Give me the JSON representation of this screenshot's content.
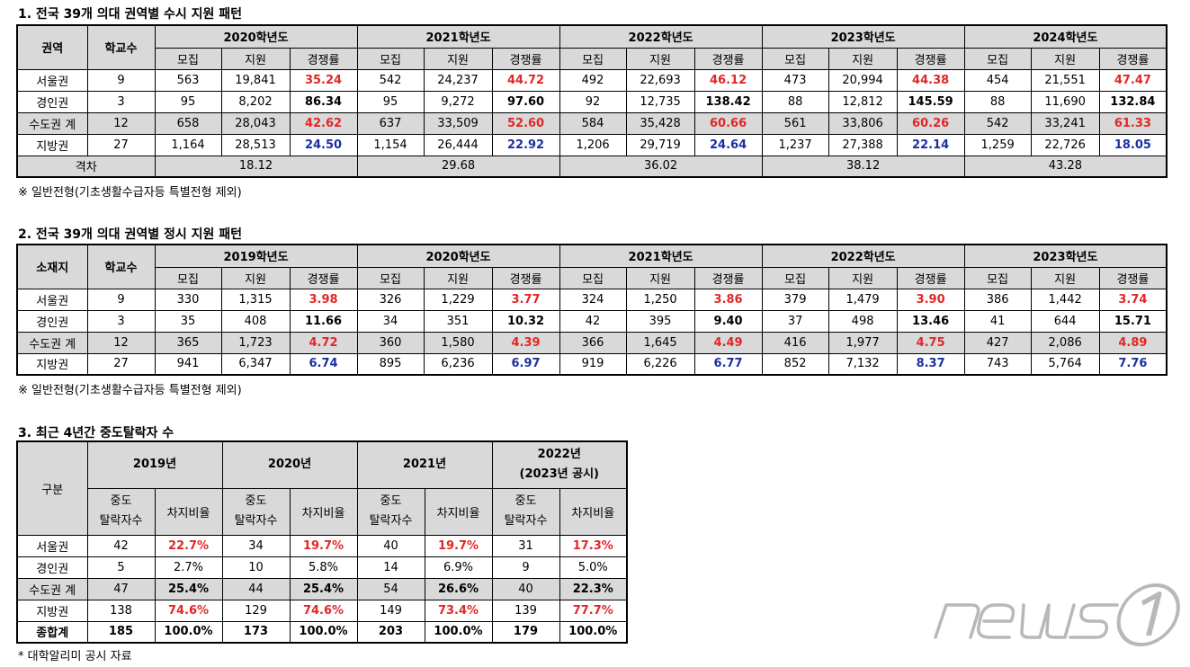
{
  "section1": {
    "title": "1. 전국 39개 의대 권역별 수시 지원 패턴",
    "header": {
      "region": "권역",
      "schools": "학교수",
      "recruit": "모집",
      "apply": "지원",
      "ratio": "경쟁률"
    },
    "years": [
      "2020학년도",
      "2021학년도",
      "2022학년도",
      "2023학년도",
      "2024학년도"
    ],
    "rows": [
      {
        "region": "서울권",
        "schools": "9",
        "shade": false,
        "color": "red",
        "cells": [
          [
            "563",
            "19,841",
            "35.24"
          ],
          [
            "542",
            "24,237",
            "44.72"
          ],
          [
            "492",
            "22,693",
            "46.12"
          ],
          [
            "473",
            "20,994",
            "44.38"
          ],
          [
            "454",
            "21,551",
            "47.47"
          ]
        ]
      },
      {
        "region": "경인권",
        "schools": "3",
        "shade": false,
        "color": "black",
        "cells": [
          [
            "95",
            "8,202",
            "86.34"
          ],
          [
            "95",
            "9,272",
            "97.60"
          ],
          [
            "92",
            "12,735",
            "138.42"
          ],
          [
            "88",
            "12,812",
            "145.59"
          ],
          [
            "88",
            "11,690",
            "132.84"
          ]
        ]
      },
      {
        "region": "수도권 계",
        "schools": "12",
        "shade": true,
        "color": "red",
        "cells": [
          [
            "658",
            "28,043",
            "42.62"
          ],
          [
            "637",
            "33,509",
            "52.60"
          ],
          [
            "584",
            "35,428",
            "60.66"
          ],
          [
            "561",
            "33,806",
            "60.26"
          ],
          [
            "542",
            "33,241",
            "61.33"
          ]
        ]
      },
      {
        "region": "지방권",
        "schools": "27",
        "shade": false,
        "color": "blue",
        "cells": [
          [
            "1,164",
            "28,513",
            "24.50"
          ],
          [
            "1,154",
            "26,444",
            "22.92"
          ],
          [
            "1,206",
            "29,719",
            "24.64"
          ],
          [
            "1,237",
            "27,388",
            "22.14"
          ],
          [
            "1,259",
            "22,726",
            "18.05"
          ]
        ]
      }
    ],
    "gap_label": "격차",
    "gaps": [
      "18.12",
      "29.68",
      "36.02",
      "38.12",
      "43.28"
    ],
    "note": "※ 일반전형(기초생활수급자등 특별전형 제외)"
  },
  "section2": {
    "title": "2. 전국 39개 의대 권역별 정시 지원 패턴",
    "header": {
      "region": "소재지",
      "schools": "학교수",
      "recruit": "모집",
      "apply": "지원",
      "ratio": "경쟁률"
    },
    "years": [
      "2019학년도",
      "2020학년도",
      "2021학년도",
      "2022학년도",
      "2023학년도"
    ],
    "rows": [
      {
        "region": "서울권",
        "schools": "9",
        "shade": false,
        "color": "red",
        "cells": [
          [
            "330",
            "1,315",
            "3.98"
          ],
          [
            "326",
            "1,229",
            "3.77"
          ],
          [
            "324",
            "1,250",
            "3.86"
          ],
          [
            "379",
            "1,479",
            "3.90"
          ],
          [
            "386",
            "1,442",
            "3.74"
          ]
        ]
      },
      {
        "region": "경인권",
        "schools": "3",
        "shade": false,
        "color": "black",
        "cells": [
          [
            "35",
            "408",
            "11.66"
          ],
          [
            "34",
            "351",
            "10.32"
          ],
          [
            "42",
            "395",
            "9.40"
          ],
          [
            "37",
            "498",
            "13.46"
          ],
          [
            "41",
            "644",
            "15.71"
          ]
        ]
      },
      {
        "region": "수도권 계",
        "schools": "12",
        "shade": true,
        "color": "red",
        "cells": [
          [
            "365",
            "1,723",
            "4.72"
          ],
          [
            "360",
            "1,580",
            "4.39"
          ],
          [
            "366",
            "1,645",
            "4.49"
          ],
          [
            "416",
            "1,977",
            "4.75"
          ],
          [
            "427",
            "2,086",
            "4.89"
          ]
        ]
      },
      {
        "region": "지방권",
        "schools": "27",
        "shade": false,
        "color": "blue",
        "cells": [
          [
            "941",
            "6,347",
            "6.74"
          ],
          [
            "895",
            "6,236",
            "6.97"
          ],
          [
            "919",
            "6,226",
            "6.77"
          ],
          [
            "852",
            "7,132",
            "8.37"
          ],
          [
            "743",
            "5,764",
            "7.76"
          ]
        ]
      }
    ],
    "note": "※ 일반전형(기초생활수급자등 특별전형 제외)"
  },
  "section3": {
    "title": "3. 최근 4년간 중도탈락자 수",
    "header": {
      "category": "구분",
      "dropouts_l1": "중도",
      "dropouts_l2": "탈락자수",
      "share": "차지비율"
    },
    "years": [
      {
        "l1": "2019년",
        "l2": ""
      },
      {
        "l1": "2020년",
        "l2": ""
      },
      {
        "l1": "2021년",
        "l2": ""
      },
      {
        "l1": "2022년",
        "l2": "(2023년 공시)"
      }
    ],
    "rows": [
      {
        "region": "서울권",
        "shade": false,
        "bold_count": false,
        "pct_style": "red",
        "cells": [
          [
            "42",
            "22.7%"
          ],
          [
            "34",
            "19.7%"
          ],
          [
            "40",
            "19.7%"
          ],
          [
            "31",
            "17.3%"
          ]
        ]
      },
      {
        "region": "경인권",
        "shade": false,
        "bold_count": false,
        "pct_style": "plain",
        "cells": [
          [
            "5",
            "2.7%"
          ],
          [
            "10",
            "5.8%"
          ],
          [
            "14",
            "6.9%"
          ],
          [
            "9",
            "5.0%"
          ]
        ]
      },
      {
        "region": "수도권 계",
        "shade": true,
        "bold_count": false,
        "pct_style": "bold",
        "cells": [
          [
            "47",
            "25.4%"
          ],
          [
            "44",
            "25.4%"
          ],
          [
            "54",
            "26.6%"
          ],
          [
            "40",
            "22.3%"
          ]
        ]
      },
      {
        "region": "지방권",
        "shade": false,
        "bold_count": false,
        "pct_style": "red",
        "cells": [
          [
            "138",
            "74.6%"
          ],
          [
            "129",
            "74.6%"
          ],
          [
            "149",
            "73.4%"
          ],
          [
            "139",
            "77.7%"
          ]
        ]
      },
      {
        "region": "종합계",
        "shade": false,
        "bold_count": true,
        "pct_style": "bold",
        "cells": [
          [
            "185",
            "100.0%"
          ],
          [
            "173",
            "100.0%"
          ],
          [
            "203",
            "100.0%"
          ],
          [
            "179",
            "100.0%"
          ]
        ]
      }
    ],
    "note": "* 대학알리미 공시 자료"
  },
  "watermark": {
    "brand": "news1"
  },
  "colors": {
    "red": "#e32626",
    "blue": "#1a2fa3",
    "header_bg": "#d9d9d9"
  }
}
